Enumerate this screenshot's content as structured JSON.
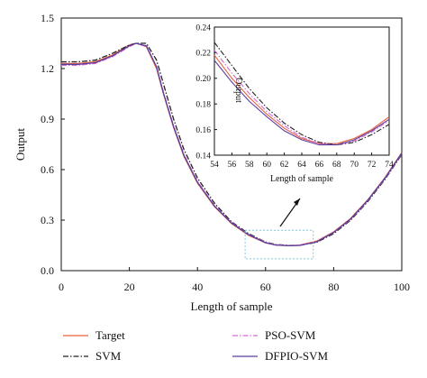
{
  "chart_data": [
    {
      "type": "line",
      "title": "",
      "xlabel": "Length of sample",
      "ylabel": "Output",
      "xlim": [
        0,
        100
      ],
      "ylim": [
        0,
        1.5
      ],
      "xticks": [
        "0",
        "20",
        "40",
        "60",
        "80",
        "100"
      ],
      "yticks": [
        "0.0",
        "0.3",
        "0.6",
        "0.9",
        "1.2",
        "1.5"
      ],
      "grid": false,
      "legend": "bottom",
      "series": [
        {
          "name": "Target",
          "color": "#e8603c",
          "style": "solid",
          "x": [
            0,
            5,
            10,
            15,
            20,
            22,
            25,
            28,
            30,
            33,
            36,
            40,
            45,
            50,
            55,
            60,
            63,
            67,
            70,
            75,
            80,
            85,
            90,
            95,
            100
          ],
          "y": [
            1.23,
            1.23,
            1.24,
            1.28,
            1.34,
            1.35,
            1.33,
            1.2,
            1.05,
            0.85,
            0.68,
            0.52,
            0.38,
            0.28,
            0.21,
            0.165,
            0.152,
            0.148,
            0.151,
            0.175,
            0.23,
            0.31,
            0.42,
            0.55,
            0.7
          ]
        },
        {
          "name": "SVM",
          "color": "#222222",
          "style": "dashdot",
          "x": [
            0,
            5,
            10,
            15,
            20,
            22,
            25,
            28,
            30,
            33,
            36,
            40,
            45,
            50,
            55,
            60,
            63,
            67,
            70,
            75,
            80,
            85,
            90,
            95,
            100
          ],
          "y": [
            1.24,
            1.24,
            1.25,
            1.29,
            1.34,
            1.35,
            1.35,
            1.25,
            1.11,
            0.9,
            0.72,
            0.55,
            0.4,
            0.29,
            0.22,
            0.17,
            0.155,
            0.15,
            0.15,
            0.168,
            0.22,
            0.3,
            0.41,
            0.54,
            0.69
          ]
        },
        {
          "name": "PSO-SVM",
          "color": "#d46ad6",
          "style": "dashdot",
          "x": [
            0,
            5,
            10,
            15,
            20,
            22,
            25,
            28,
            30,
            33,
            36,
            40,
            45,
            50,
            55,
            60,
            63,
            67,
            70,
            75,
            80,
            85,
            90,
            95,
            100
          ],
          "y": [
            1.22,
            1.22,
            1.23,
            1.27,
            1.33,
            1.35,
            1.33,
            1.21,
            1.06,
            0.86,
            0.69,
            0.53,
            0.385,
            0.285,
            0.215,
            0.168,
            0.153,
            0.149,
            0.151,
            0.172,
            0.226,
            0.305,
            0.415,
            0.545,
            0.695
          ]
        },
        {
          "name": "DFPIO-SVM",
          "color": "#5b3fa0",
          "style": "solid",
          "x": [
            0,
            5,
            10,
            15,
            20,
            22,
            25,
            28,
            30,
            33,
            36,
            40,
            45,
            50,
            55,
            60,
            63,
            67,
            70,
            75,
            80,
            85,
            90,
            95,
            100
          ],
          "y": [
            1.225,
            1.225,
            1.235,
            1.275,
            1.335,
            1.35,
            1.335,
            1.21,
            1.055,
            0.855,
            0.685,
            0.525,
            0.383,
            0.283,
            0.213,
            0.166,
            0.152,
            0.148,
            0.15,
            0.171,
            0.227,
            0.307,
            0.418,
            0.548,
            0.698
          ]
        }
      ]
    },
    {
      "type": "line",
      "title": "",
      "xlabel": "Length of sample",
      "ylabel": "Output",
      "xlim": [
        54,
        74
      ],
      "ylim": [
        0.14,
        0.24
      ],
      "xticks": [
        "54",
        "56",
        "58",
        "60",
        "62",
        "64",
        "66",
        "68",
        "70",
        "72",
        "74"
      ],
      "yticks": [
        "0.14",
        "0.16",
        "0.18",
        "0.20",
        "0.22",
        "0.24"
      ],
      "grid": false,
      "series": [
        {
          "name": "Target",
          "color": "#e8603c",
          "style": "solid",
          "x": [
            54,
            56,
            58,
            60,
            62,
            64,
            66,
            68,
            70,
            72,
            74
          ],
          "y": [
            0.218,
            0.2,
            0.185,
            0.172,
            0.161,
            0.153,
            0.149,
            0.149,
            0.153,
            0.16,
            0.17
          ]
        },
        {
          "name": "SVM",
          "color": "#222222",
          "style": "dashdot",
          "x": [
            54,
            56,
            58,
            60,
            62,
            64,
            66,
            68,
            70,
            72,
            74
          ],
          "y": [
            0.228,
            0.21,
            0.192,
            0.177,
            0.165,
            0.156,
            0.15,
            0.148,
            0.15,
            0.156,
            0.164
          ]
        },
        {
          "name": "PSO-SVM",
          "color": "#d46ad6",
          "style": "dashdot",
          "x": [
            54,
            56,
            58,
            60,
            62,
            64,
            66,
            68,
            70,
            72,
            74
          ],
          "y": [
            0.222,
            0.204,
            0.188,
            0.174,
            0.163,
            0.154,
            0.149,
            0.148,
            0.151,
            0.158,
            0.167
          ]
        },
        {
          "name": "DFPIO-SVM",
          "color": "#5b3fa0",
          "style": "solid",
          "x": [
            54,
            56,
            58,
            60,
            62,
            64,
            66,
            68,
            70,
            72,
            74
          ],
          "y": [
            0.214,
            0.197,
            0.182,
            0.17,
            0.159,
            0.152,
            0.148,
            0.148,
            0.152,
            0.159,
            0.168
          ]
        }
      ]
    }
  ]
}
